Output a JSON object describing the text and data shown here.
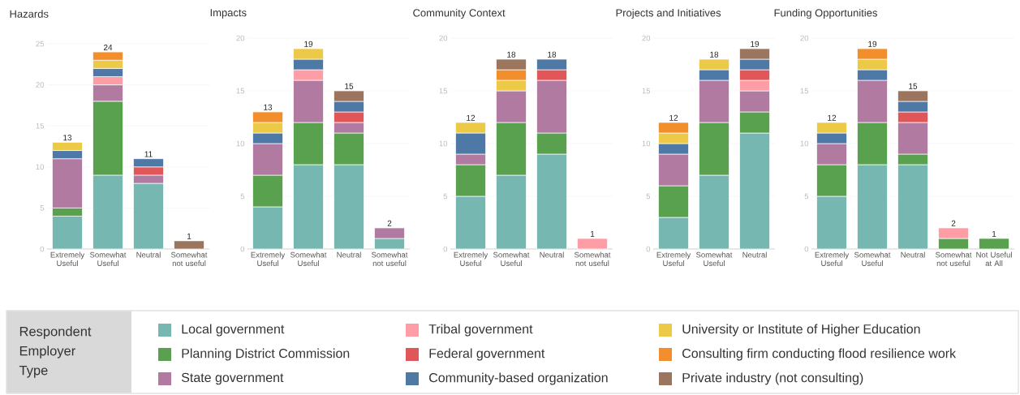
{
  "chart_data": [
    {
      "type": "bar",
      "title": "Hazards",
      "stacked": true,
      "grid": "y",
      "legend": "bottom",
      "legend_title": "Respondent Employer Type",
      "categories": [
        "Extremely Useful",
        "Somewhat Useful",
        "Neutral",
        "Somewhat not useful"
      ],
      "ylim": [
        0,
        25
      ],
      "yticks": [
        0,
        5,
        10,
        15,
        20,
        25
      ],
      "totals": [
        "13",
        "24",
        "11",
        "1"
      ],
      "series": [
        {
          "name": "Local government",
          "color": "#76b7b2",
          "values": [
            4,
            9,
            8,
            null
          ]
        },
        {
          "name": "Planning District Commission",
          "color": "#59a14f",
          "values": [
            1,
            9,
            null,
            null
          ]
        },
        {
          "name": "State government",
          "color": "#b07aa1",
          "values": [
            6,
            2,
            1,
            null
          ]
        },
        {
          "name": "Tribal government",
          "color": "#ff9da7",
          "values": [
            null,
            1,
            null,
            null
          ]
        },
        {
          "name": "Federal government",
          "color": "#e15759",
          "values": [
            null,
            null,
            1,
            null
          ]
        },
        {
          "name": "Community-based organization",
          "color": "#4e79a7",
          "values": [
            1,
            1,
            1,
            null
          ]
        },
        {
          "name": "University or Institute of Higher Education",
          "color": "#edc948",
          "values": [
            1,
            1,
            null,
            null
          ]
        },
        {
          "name": "Consulting firm conducting flood resilience work",
          "color": "#f28e2b",
          "values": [
            null,
            1,
            null,
            null
          ]
        },
        {
          "name": "Private industry (not consulting)",
          "color": "#9c755f",
          "values": [
            null,
            null,
            null,
            1
          ]
        }
      ]
    },
    {
      "type": "bar",
      "title": "Impacts",
      "stacked": true,
      "grid": "y",
      "categories": [
        "Extremely Useful",
        "Somewhat Useful",
        "Neutral",
        "Somewhat not useful"
      ],
      "ylim": [
        0,
        20
      ],
      "yticks": [
        0,
        5,
        10,
        15,
        20
      ],
      "totals": [
        "13",
        "19",
        "15",
        "2"
      ],
      "series": [
        {
          "color": "#76b7b2",
          "values": [
            4,
            8,
            8,
            1
          ]
        },
        {
          "color": "#59a14f",
          "values": [
            3,
            4,
            3,
            null
          ]
        },
        {
          "color": "#b07aa1",
          "values": [
            3,
            4,
            1,
            1
          ]
        },
        {
          "color": "#ff9da7",
          "values": [
            null,
            1,
            null,
            null
          ]
        },
        {
          "color": "#e15759",
          "values": [
            null,
            null,
            1,
            null
          ]
        },
        {
          "color": "#4e79a7",
          "values": [
            1,
            1,
            1,
            null
          ]
        },
        {
          "color": "#edc948",
          "values": [
            1,
            1,
            null,
            null
          ]
        },
        {
          "color": "#f28e2b",
          "values": [
            1,
            null,
            null,
            null
          ]
        },
        {
          "color": "#9c755f",
          "values": [
            null,
            null,
            1,
            null
          ]
        }
      ]
    },
    {
      "type": "bar",
      "title": "Community Context",
      "stacked": true,
      "grid": "y",
      "categories": [
        "Extremely Useful",
        "Somewhat Useful",
        "Neutral",
        "Somewhat not useful"
      ],
      "ylim": [
        0,
        20
      ],
      "yticks": [
        0,
        5,
        10,
        15,
        20
      ],
      "totals": [
        "12",
        "18",
        "18",
        "1"
      ],
      "series": [
        {
          "color": "#76b7b2",
          "values": [
            5,
            7,
            9,
            null
          ]
        },
        {
          "color": "#59a14f",
          "values": [
            3,
            5,
            2,
            null
          ]
        },
        {
          "color": "#b07aa1",
          "values": [
            1,
            3,
            5,
            null
          ]
        },
        {
          "color": "#ff9da7",
          "values": [
            null,
            null,
            null,
            1
          ]
        },
        {
          "color": "#e15759",
          "values": [
            null,
            null,
            1,
            null
          ]
        },
        {
          "color": "#4e79a7",
          "values": [
            2,
            null,
            1,
            null
          ]
        },
        {
          "color": "#edc948",
          "values": [
            1,
            1,
            null,
            null
          ]
        },
        {
          "color": "#f28e2b",
          "values": [
            null,
            1,
            null,
            null
          ]
        },
        {
          "color": "#9c755f",
          "values": [
            null,
            1,
            null,
            null
          ]
        }
      ]
    },
    {
      "type": "bar",
      "title": "Projects and Initiatives",
      "stacked": true,
      "grid": "y",
      "categories": [
        "Extremely Useful",
        "Somewhat Useful",
        "Neutral"
      ],
      "ylim": [
        0,
        20
      ],
      "yticks": [
        0,
        5,
        10,
        15,
        20
      ],
      "totals": [
        "12",
        "18",
        "19"
      ],
      "series": [
        {
          "color": "#76b7b2",
          "values": [
            3,
            7,
            11
          ]
        },
        {
          "color": "#59a14f",
          "values": [
            3,
            5,
            2
          ]
        },
        {
          "color": "#b07aa1",
          "values": [
            3,
            4,
            2
          ]
        },
        {
          "color": "#ff9da7",
          "values": [
            null,
            null,
            1
          ]
        },
        {
          "color": "#e15759",
          "values": [
            null,
            null,
            1
          ]
        },
        {
          "color": "#4e79a7",
          "values": [
            1,
            1,
            1
          ]
        },
        {
          "color": "#edc948",
          "values": [
            1,
            1,
            null
          ]
        },
        {
          "color": "#f28e2b",
          "values": [
            1,
            null,
            null
          ]
        },
        {
          "color": "#9c755f",
          "values": [
            null,
            null,
            1
          ]
        }
      ]
    },
    {
      "type": "bar",
      "title": "Funding Opportunities",
      "stacked": true,
      "grid": "y",
      "categories": [
        "Extremely Useful",
        "Somewhat Useful",
        "Neutral",
        "Somewhat not useful",
        "Not Useful at All"
      ],
      "ylim": [
        0,
        20
      ],
      "yticks": [
        0,
        5,
        10,
        15,
        20
      ],
      "totals": [
        "12",
        "19",
        "15",
        "2",
        "1"
      ],
      "series": [
        {
          "color": "#76b7b2",
          "values": [
            5,
            8,
            8,
            null,
            null
          ]
        },
        {
          "color": "#59a14f",
          "values": [
            3,
            4,
            1,
            1,
            1
          ]
        },
        {
          "color": "#b07aa1",
          "values": [
            2,
            4,
            3,
            null,
            null
          ]
        },
        {
          "color": "#ff9da7",
          "values": [
            null,
            null,
            null,
            1,
            null
          ]
        },
        {
          "color": "#e15759",
          "values": [
            null,
            null,
            1,
            null,
            null
          ]
        },
        {
          "color": "#4e79a7",
          "values": [
            1,
            1,
            1,
            null,
            null
          ]
        },
        {
          "color": "#edc948",
          "values": [
            1,
            1,
            null,
            null,
            null
          ]
        },
        {
          "color": "#f28e2b",
          "values": [
            null,
            1,
            null,
            null,
            null
          ]
        },
        {
          "color": "#9c755f",
          "values": [
            null,
            null,
            1,
            null,
            null
          ]
        }
      ]
    }
  ]
}
